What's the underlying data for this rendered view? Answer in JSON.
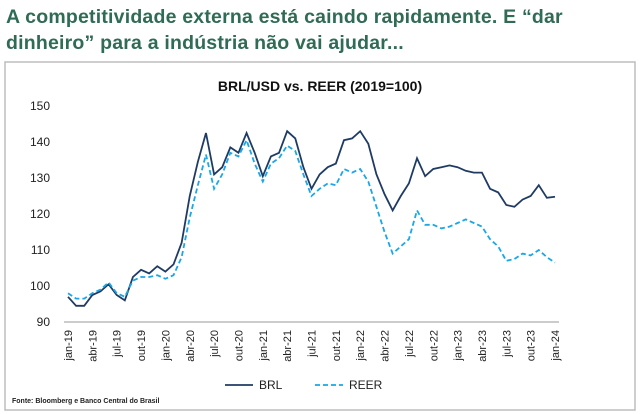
{
  "header": {
    "title": "A competitividade externa está caindo rapidamente. E “dar dinheiro” para a indústria não vai ajudar..."
  },
  "chart_data": {
    "type": "line",
    "title": "BRL/USD vs. REER (2019=100)",
    "categories": [
      "jan-19",
      null,
      null,
      "abr-19",
      null,
      null,
      "jul-19",
      null,
      null,
      "out-19",
      null,
      null,
      "jan-20",
      null,
      null,
      "abr-20",
      null,
      null,
      "jul-20",
      null,
      null,
      "out-20",
      null,
      null,
      "jan-21",
      null,
      null,
      "abr-21",
      null,
      null,
      "jul-21",
      null,
      null,
      "out-21",
      null,
      null,
      "jan-22",
      null,
      null,
      "abr-22",
      null,
      null,
      "jul-22",
      null,
      null,
      "out-22",
      null,
      null,
      "jan-23",
      null,
      null,
      "abr-23",
      null,
      null,
      "jul-23",
      null,
      null,
      "out-23",
      null,
      null,
      "jan-24"
    ],
    "series": [
      {
        "name": "BRL",
        "color": "#1f3b64",
        "dash": false,
        "values": [
          97,
          94.5,
          94.5,
          97.5,
          98.5,
          100.5,
          97.5,
          96,
          102.5,
          104.5,
          103.5,
          105.5,
          104,
          106,
          112,
          125,
          134.5,
          142.5,
          131,
          133,
          138.5,
          137,
          142.5,
          137,
          130.5,
          136,
          137,
          143,
          141,
          133,
          127,
          131,
          133,
          134,
          140.5,
          141,
          143,
          139.5,
          131,
          125.5,
          121,
          125,
          128.5,
          135.5,
          130.5,
          132.5,
          133,
          133.5,
          133,
          132,
          131.5,
          131.5,
          127,
          126,
          122.5,
          122,
          124,
          125,
          128,
          124.5,
          124.8
        ]
      },
      {
        "name": "REER",
        "color": "#1aa7e8",
        "dash": true,
        "values": [
          98,
          96.5,
          96.5,
          98,
          99,
          101,
          98,
          97,
          101.5,
          102.5,
          102.5,
          103,
          102,
          103,
          108,
          119,
          128,
          136.5,
          127,
          131,
          137,
          136,
          140.5,
          134,
          129,
          134,
          135.5,
          139,
          137.5,
          131,
          125,
          127,
          128.5,
          128,
          132.5,
          131.5,
          132.5,
          129,
          122,
          115,
          109,
          111,
          113,
          121,
          117,
          117,
          116,
          116.5,
          117.5,
          118.5,
          117.5,
          116.5,
          113,
          111,
          107,
          107.5,
          109,
          108.5,
          110,
          108,
          106.5
        ]
      }
    ],
    "ylim": [
      90,
      150
    ],
    "yticks": [
      90,
      100,
      110,
      120,
      130,
      140,
      150
    ],
    "legend": "bottom",
    "source": "Fonte: Bloomberg e Banco Central do Brasil"
  }
}
